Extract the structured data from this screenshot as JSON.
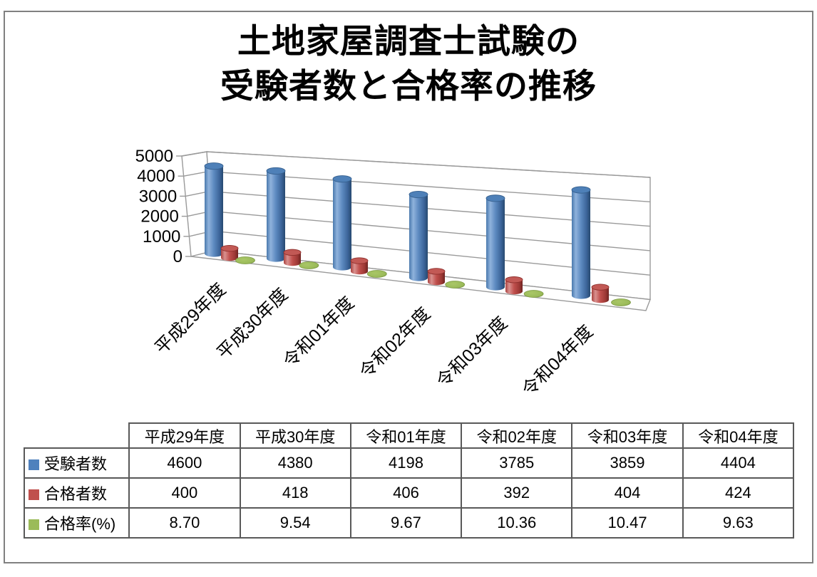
{
  "title": {
    "line1": "土地家屋調査士試験の",
    "line2": "受験者数と合格率の推移"
  },
  "chart_data": {
    "type": "bar",
    "subtype": "3d-cylinder",
    "title": "土地家屋調査士試験の受験者数と合格率の推移",
    "categories": [
      "平成29年度",
      "平成30年度",
      "令和01年度",
      "令和02年度",
      "令和03年度",
      "令和04年度"
    ],
    "series": [
      {
        "name": "受験者数",
        "color": "#4F81BD",
        "values": [
          4600,
          4380,
          4198,
          3785,
          3859,
          4404
        ]
      },
      {
        "name": "合格者数",
        "color": "#C0504D",
        "values": [
          400,
          418,
          406,
          392,
          404,
          424
        ]
      },
      {
        "name": "合格率(%)",
        "color": "#9BBB59",
        "values": [
          8.7,
          9.54,
          9.67,
          10.36,
          10.47,
          9.63
        ]
      }
    ],
    "xlabel": "",
    "ylabel": "",
    "ylim": [
      0,
      5000
    ],
    "yticks": [
      "5000",
      "4000",
      "3000",
      "2000",
      "1000",
      "0"
    ],
    "grid": true,
    "legend_position": "table-row-headers"
  },
  "table": {
    "header": [
      "",
      "平成29年度",
      "平成30年度",
      "令和01年度",
      "令和02年度",
      "令和03年度",
      "令和04年度"
    ],
    "rows": [
      {
        "label": "受験者数",
        "swatch": "#4F81BD",
        "values": [
          "4600",
          "4380",
          "4198",
          "3785",
          "3859",
          "4404"
        ]
      },
      {
        "label": "合格者数",
        "swatch": "#C0504D",
        "values": [
          "400",
          "418",
          "406",
          "392",
          "404",
          "424"
        ]
      },
      {
        "label": "合格率(%)",
        "swatch": "#9BBB59",
        "values": [
          "8.70",
          "9.54",
          "9.67",
          "10.36",
          "10.47",
          "9.63"
        ]
      }
    ]
  }
}
